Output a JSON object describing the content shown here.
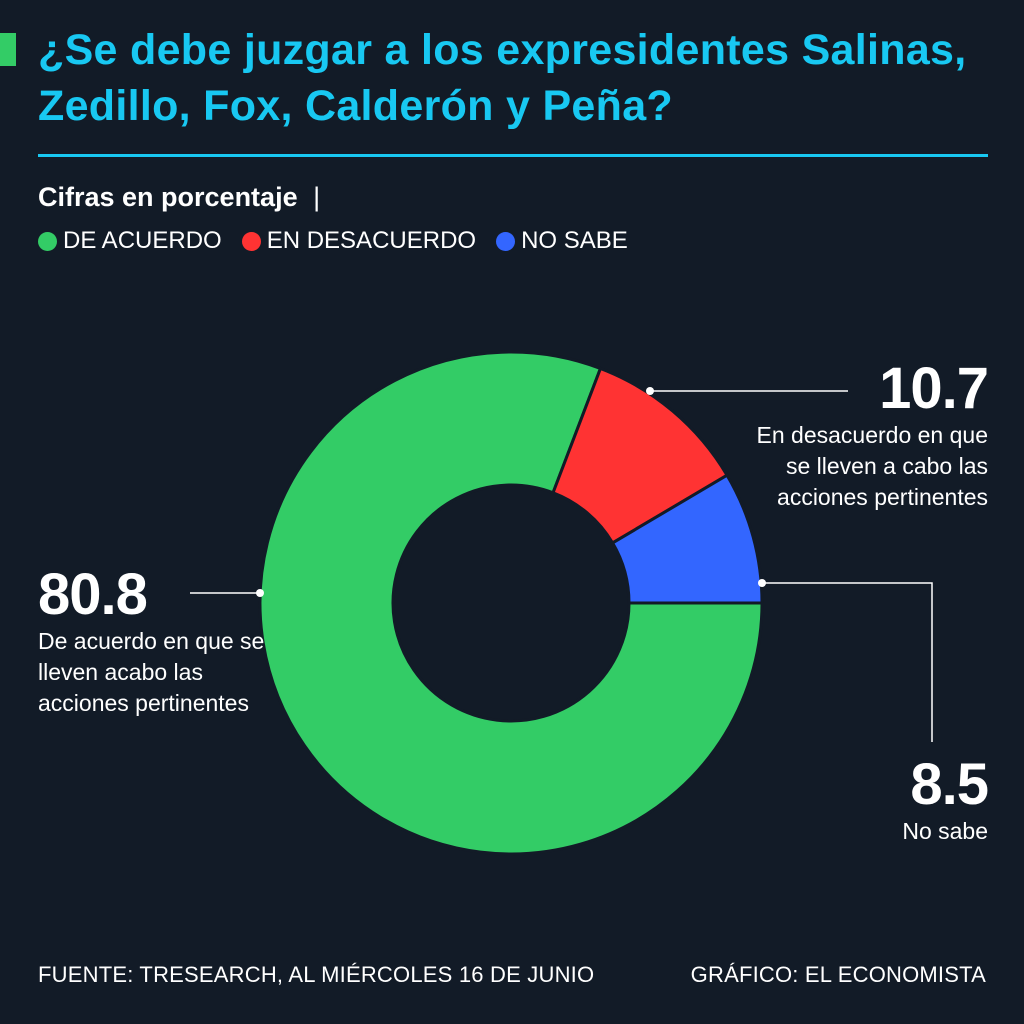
{
  "header": {
    "title": "¿Se debe juzgar a los expresidentes Salinas, Zedillo, Fox, Calderón y Peña?",
    "subtitle": "Cifras en porcentaje",
    "subtitle_separator": "|"
  },
  "legend": [
    {
      "label": "DE ACUERDO",
      "color": "#33cc66"
    },
    {
      "label": "EN DESACUERDO",
      "color": "#ff3333"
    },
    {
      "label": "NO SABE",
      "color": "#3366ff"
    }
  ],
  "chart_data": {
    "type": "pie",
    "variant": "donut",
    "unit": "%",
    "series": [
      {
        "name": "De acuerdo",
        "value": 80.8,
        "value_label": "80.8",
        "description": "De acuerdo en que se lleven acabo las acciones pertinentes",
        "color": "#33cc66"
      },
      {
        "name": "En desacuerdo",
        "value": 10.7,
        "value_label": "10.7",
        "description": "En desacuerdo en que se lleven a cabo las acciones pertinentes",
        "color": "#ff3333"
      },
      {
        "name": "No sabe",
        "value": 8.5,
        "value_label": "8.5",
        "description": "No sabe",
        "color": "#3366ff"
      }
    ]
  },
  "footer": {
    "source": "FUENTE: TRESEARCH, AL MIÉRCOLES 16 DE JUNIO",
    "credit": "GRÁFICO: EL ECONOMISTA"
  },
  "colors": {
    "background": "#121b27",
    "title": "#18c8f2",
    "accent": "#33cc66"
  }
}
